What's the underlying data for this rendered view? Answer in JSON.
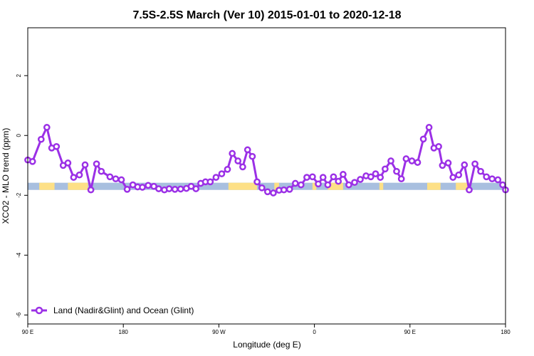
{
  "chart_data": {
    "type": "line",
    "title": "7.5S-2.5S March (Ver 10)   2015-01-01 to 2020-12-18",
    "xlabel": "Longitude (deg E)",
    "ylabel": "XCO2 - MLO trend (ppm)",
    "xlim": [
      90,
      590
    ],
    "ylim": [
      -6.3,
      3.6
    ],
    "grid": false,
    "legend_position": "bottom-left",
    "x_ticks": [
      {
        "value": 90,
        "label": "90 E"
      },
      {
        "value": 190,
        "label": "180"
      },
      {
        "value": 290,
        "label": "90 W"
      },
      {
        "value": 390,
        "label": "0"
      },
      {
        "value": 490,
        "label": "90 E"
      },
      {
        "value": 590,
        "label": "180"
      }
    ],
    "y_ticks": [
      {
        "value": -6,
        "label": "-6"
      },
      {
        "value": -4,
        "label": "-4"
      },
      {
        "value": -2,
        "label": "-2"
      },
      {
        "value": 0,
        "label": "0"
      },
      {
        "value": 2,
        "label": "2"
      }
    ],
    "series": [
      {
        "name": "Land (Nadir&Glint) and Ocean (Glint)",
        "color": "#9b30e6",
        "x": [
          90,
          95,
          104,
          110,
          115,
          120,
          127,
          132,
          138,
          144,
          150,
          156,
          162,
          167,
          176,
          182,
          188,
          194,
          200,
          205,
          210,
          216,
          222,
          227,
          233,
          238,
          244,
          250,
          256,
          261,
          266,
          271,
          276,
          281,
          287,
          293,
          299,
          304,
          310,
          315,
          320,
          325,
          330,
          335,
          341,
          347,
          353,
          358,
          364,
          370,
          376,
          382,
          388,
          394,
          399,
          404,
          410,
          415,
          420,
          426,
          432,
          438,
          444,
          449,
          454,
          459,
          464,
          470,
          476,
          481,
          486,
          492,
          498,
          504,
          510,
          515,
          520,
          524,
          530,
          535,
          541,
          547,
          552,
          558,
          564,
          570,
          576,
          582,
          587,
          590
        ],
        "y": [
          -0.82,
          -0.87,
          -0.13,
          0.27,
          -0.42,
          -0.37,
          -1.0,
          -0.92,
          -1.4,
          -1.32,
          -0.98,
          -1.82,
          -0.95,
          -1.2,
          -1.38,
          -1.45,
          -1.48,
          -1.8,
          -1.65,
          -1.72,
          -1.73,
          -1.67,
          -1.7,
          -1.78,
          -1.82,
          -1.78,
          -1.8,
          -1.79,
          -1.77,
          -1.7,
          -1.78,
          -1.6,
          -1.55,
          -1.55,
          -1.4,
          -1.28,
          -1.13,
          -0.6,
          -0.85,
          -1.05,
          -0.48,
          -0.7,
          -1.55,
          -1.75,
          -1.88,
          -1.92,
          -1.83,
          -1.82,
          -1.8,
          -1.6,
          -1.65,
          -1.4,
          -1.38,
          -1.62,
          -1.4,
          -1.65,
          -1.38,
          -1.53,
          -1.3,
          -1.65,
          -1.57,
          -1.47,
          -1.35,
          -1.38,
          -1.28,
          -1.4,
          -1.12,
          -0.85,
          -1.2,
          -1.45,
          -0.78,
          -0.85,
          -0.9,
          -0.12,
          0.27,
          -0.42,
          -0.37,
          -1.0,
          -0.92,
          -1.4,
          -1.32,
          -0.98,
          -1.82,
          -0.95,
          -1.2,
          -1.38,
          -1.45,
          -1.48,
          -1.65,
          -1.82
        ]
      }
    ],
    "coverage_band": {
      "ocean_color": "#a8bfdf",
      "land_color": "#fde086",
      "land_ranges": [
        [
          102,
          118
        ],
        [
          132,
          153
        ],
        [
          300,
          330
        ],
        [
          348,
          353
        ],
        [
          388,
          392
        ],
        [
          404,
          420
        ],
        [
          458,
          462
        ],
        [
          508,
          522
        ],
        [
          538,
          552
        ]
      ]
    }
  }
}
